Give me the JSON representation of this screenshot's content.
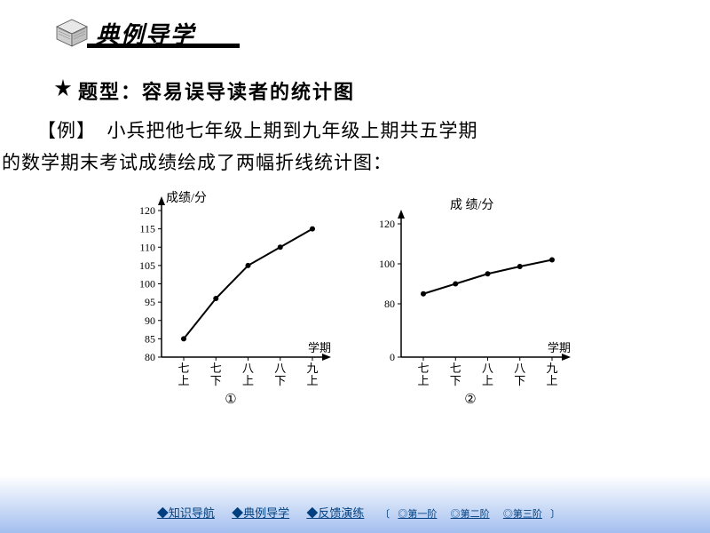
{
  "banner": {
    "title": "典例导学"
  },
  "starline": {
    "prefix": "题型：",
    "text": "容易误导读者的统计图"
  },
  "body": {
    "line1_label": "【例】",
    "line1_rest": "小兵把他七年级上期到九年级上期共五学期",
    "line2": "的数学期末考试成绩绘成了两幅折线统计图："
  },
  "chart1": {
    "title": "成绩/分",
    "xlabel": "学期",
    "xticks": [
      "七上",
      "七下",
      "八上",
      "八下",
      "九上"
    ],
    "yticks": [
      "80",
      "85",
      "90",
      "95",
      "100",
      "105",
      "110",
      "115",
      "120"
    ],
    "ylim": [
      80,
      120
    ],
    "values": [
      85,
      96,
      105,
      110,
      115
    ],
    "caption": "①",
    "line_color": "#000000",
    "bg": "#ffffff"
  },
  "chart2": {
    "title": "成 绩/分",
    "xlabel": "学期",
    "xticks": [
      "七上",
      "七下",
      "八上",
      "八下",
      "九上"
    ],
    "yticks": [
      "0",
      "80",
      "100",
      "120"
    ],
    "ytick_pos": [
      0,
      0.4,
      0.7,
      1.0
    ],
    "ylim": [
      0,
      120
    ],
    "values_norm": [
      0.475,
      0.55,
      0.625,
      0.68,
      0.73
    ],
    "caption": "②",
    "line_color": "#000000",
    "bg": "#ffffff"
  },
  "nav": {
    "items": [
      "◆知识导航",
      "◆典例导学",
      "◆反馈演练"
    ],
    "subs": [
      "◎第一阶",
      "◎第二阶",
      "◎第三阶"
    ],
    "lparen": "〔",
    "rparen": "〕"
  },
  "colors": {
    "text": "#000000",
    "link": "#004080"
  }
}
